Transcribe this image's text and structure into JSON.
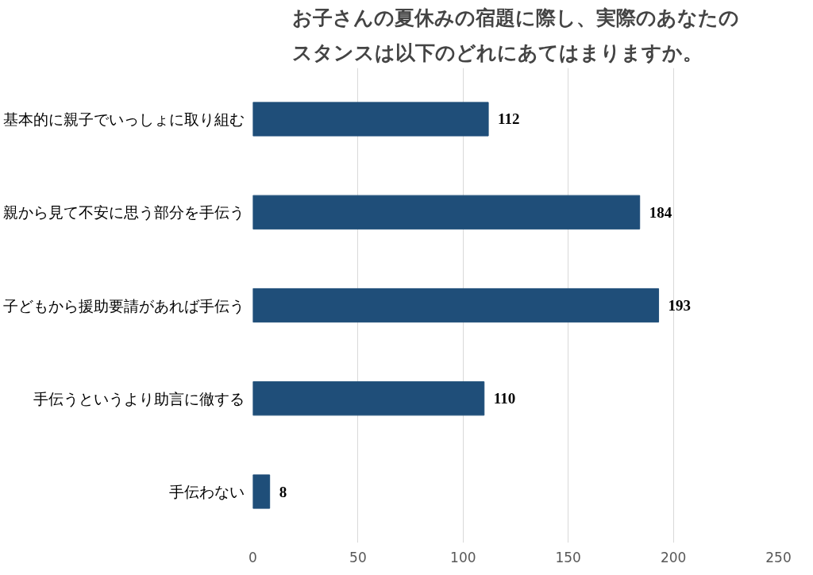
{
  "chart_data": {
    "type": "bar",
    "orientation": "horizontal",
    "title": "お子さんの夏休みの宿題に際し、実際のあなたのスタンスは以下のどれにあてはまりますか。",
    "categories": [
      "基本的に親子でいっしょに取り組む",
      "親から見て不安に思う部分を手伝う",
      "子どもから援助要請があれば手伝う",
      "手伝うというより助言に徹する",
      "手伝わない"
    ],
    "values": [
      112,
      184,
      193,
      110,
      8
    ],
    "color": "#1f4e79",
    "xlim": [
      0,
      250
    ],
    "xticks": [
      0,
      50,
      100,
      150,
      200,
      250
    ],
    "grid": "x",
    "data_labels": true
  }
}
